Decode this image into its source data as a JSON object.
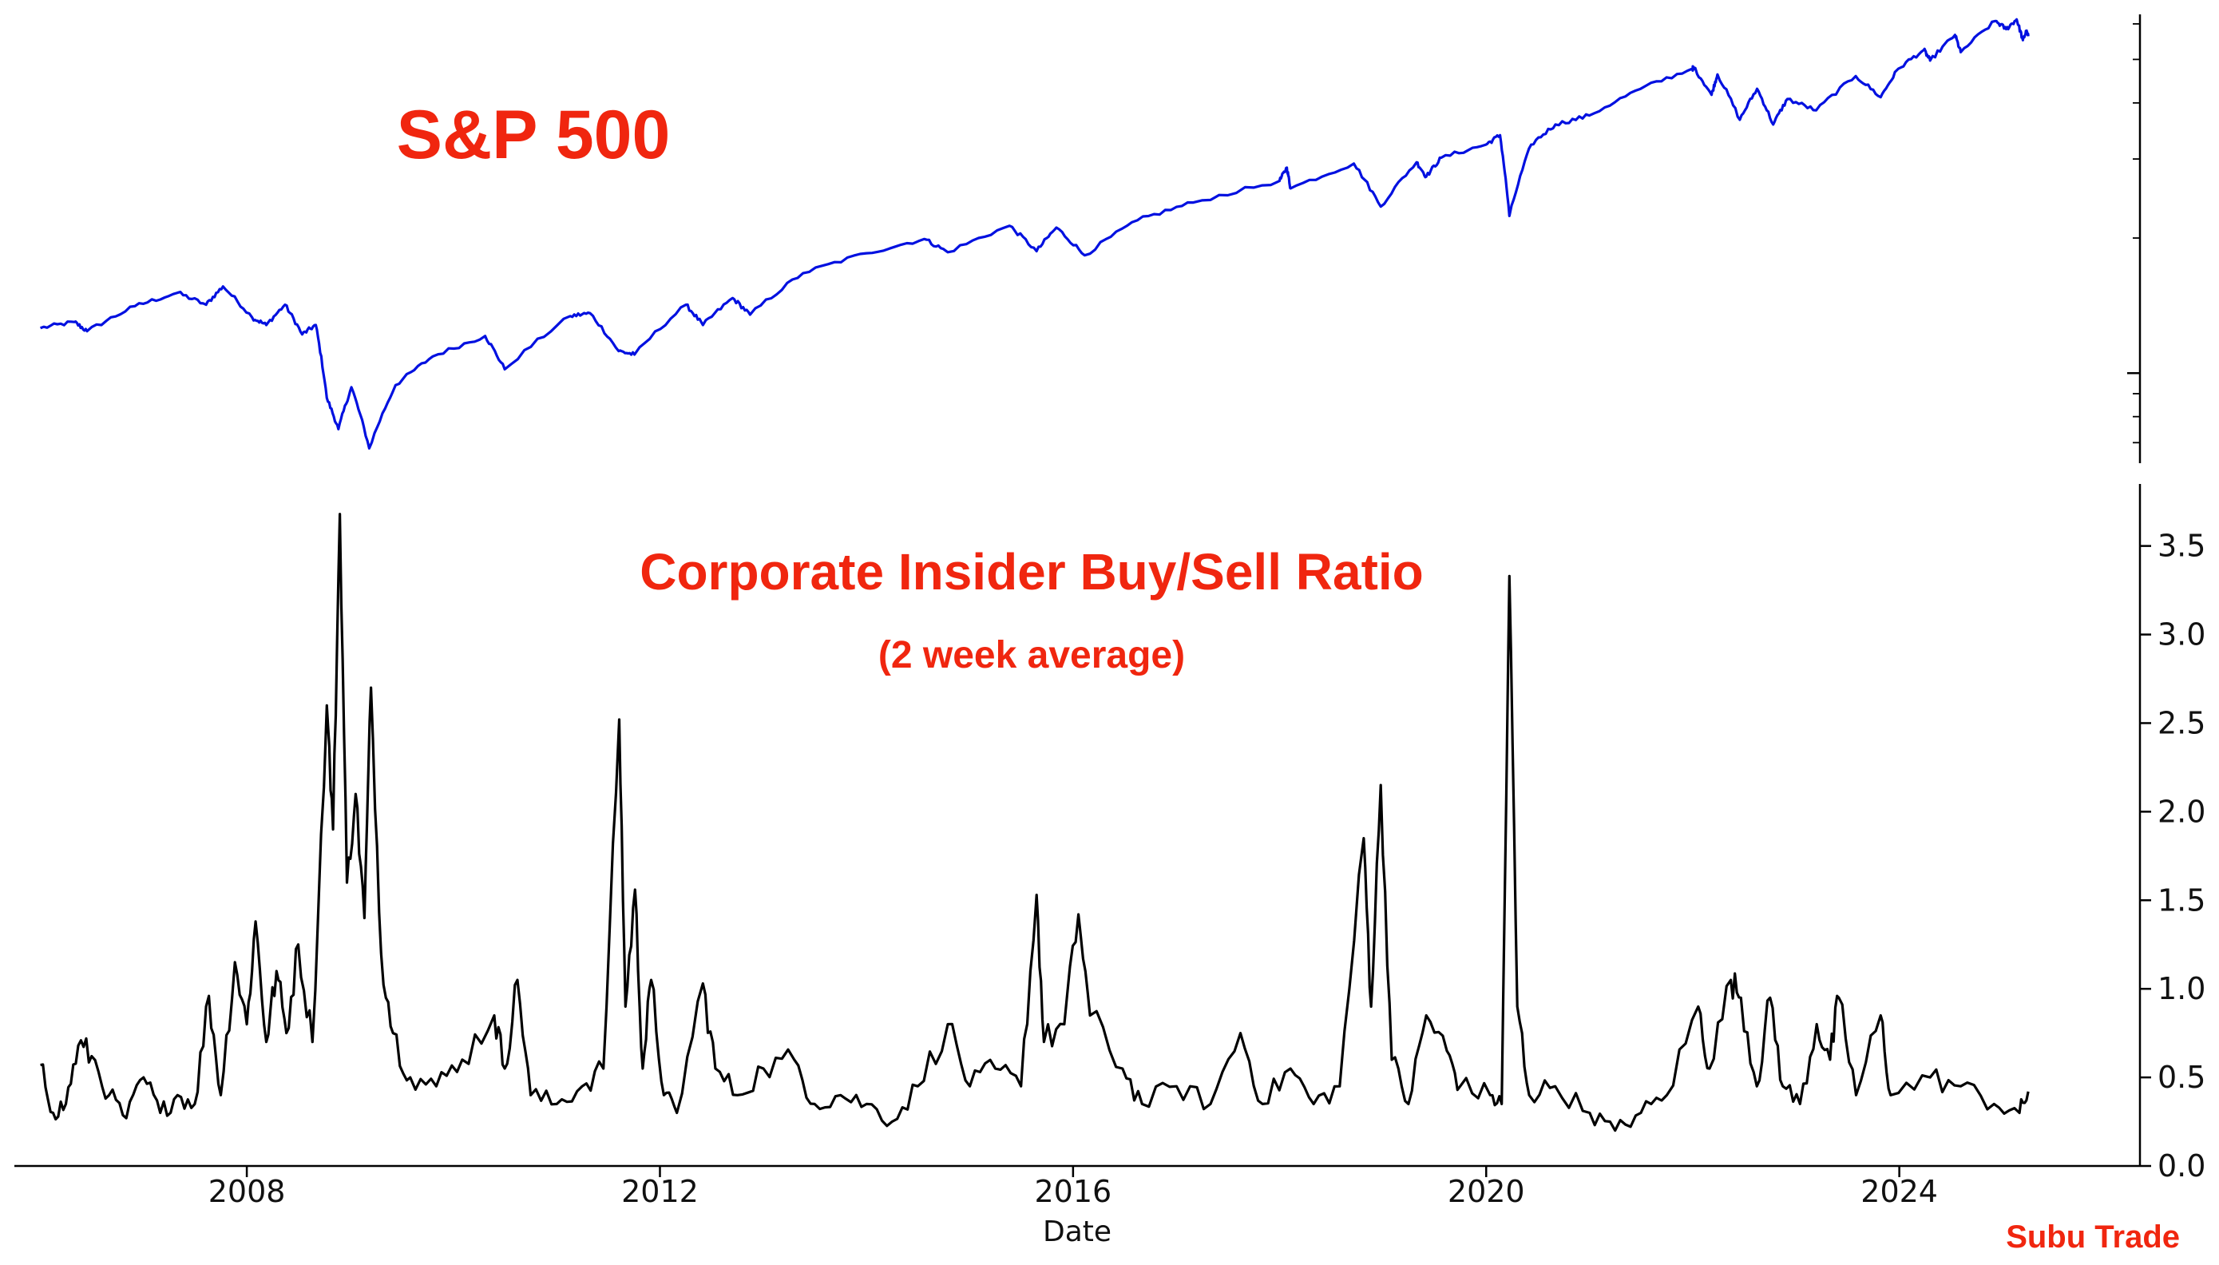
{
  "chart_data": [
    {
      "panel": "top",
      "type": "line",
      "annotation": "S&P 500",
      "yscale": "log",
      "xlabel": "",
      "ylabel": "",
      "ylim": [
        630,
        6300
      ],
      "yticks_shown_labels": false,
      "color": "#0010e0",
      "series": [
        {
          "points": [
            [
              "2006-01-01",
              1260
            ],
            [
              "2006-05-01",
              1300
            ],
            [
              "2006-06-15",
              1240
            ],
            [
              "2006-12-01",
              1410
            ],
            [
              "2007-05-01",
              1510
            ],
            [
              "2007-08-10",
              1420
            ],
            [
              "2007-10-09",
              1560
            ],
            [
              "2008-01-20",
              1330
            ],
            [
              "2008-03-10",
              1280
            ],
            [
              "2008-05-15",
              1420
            ],
            [
              "2008-07-15",
              1220
            ],
            [
              "2008-09-01",
              1280
            ],
            [
              "2008-10-10",
              880
            ],
            [
              "2008-11-20",
              750
            ],
            [
              "2009-01-05",
              930
            ],
            [
              "2009-03-09",
              680
            ],
            [
              "2009-06-10",
              940
            ],
            [
              "2009-10-20",
              1090
            ],
            [
              "2010-04-23",
              1210
            ],
            [
              "2010-07-01",
              1020
            ],
            [
              "2011-02-18",
              1340
            ],
            [
              "2011-04-29",
              1360
            ],
            [
              "2011-08-08",
              1120
            ],
            [
              "2011-10-03",
              1100
            ],
            [
              "2012-04-02",
              1420
            ],
            [
              "2012-06-01",
              1280
            ],
            [
              "2012-09-14",
              1470
            ],
            [
              "2012-11-15",
              1350
            ],
            [
              "2013-05-21",
              1670
            ],
            [
              "2013-12-31",
              1850
            ],
            [
              "2014-07-24",
              1990
            ],
            [
              "2014-10-15",
              1860
            ],
            [
              "2015-05-21",
              2130
            ],
            [
              "2015-08-25",
              1870
            ],
            [
              "2015-11-03",
              2110
            ],
            [
              "2016-02-11",
              1830
            ],
            [
              "2016-08-15",
              2190
            ],
            [
              "2017-03-01",
              2400
            ],
            [
              "2017-12-31",
              2680
            ],
            [
              "2018-01-26",
              2870
            ],
            [
              "2018-02-08",
              2580
            ],
            [
              "2018-09-20",
              2930
            ],
            [
              "2018-12-24",
              2350
            ],
            [
              "2019-04-30",
              2950
            ],
            [
              "2019-06-03",
              2740
            ],
            [
              "2019-07-26",
              3020
            ],
            [
              "2019-12-31",
              3230
            ],
            [
              "2020-02-19",
              3390
            ],
            [
              "2020-03-23",
              2240
            ],
            [
              "2020-06-08",
              3230
            ],
            [
              "2020-09-02",
              3580
            ],
            [
              "2020-12-31",
              3750
            ],
            [
              "2021-06-30",
              4300
            ],
            [
              "2021-12-31",
              4770
            ],
            [
              "2022-01-03",
              4800
            ],
            [
              "2022-03-08",
              4170
            ],
            [
              "2022-03-29",
              4630
            ],
            [
              "2022-06-16",
              3670
            ],
            [
              "2022-08-16",
              4300
            ],
            [
              "2022-10-12",
              3580
            ],
            [
              "2022-12-01",
              4080
            ],
            [
              "2023-03-13",
              3850
            ],
            [
              "2023-07-31",
              4590
            ],
            [
              "2023-10-27",
              4120
            ],
            [
              "2023-12-29",
              4770
            ],
            [
              "2024-03-28",
              5250
            ],
            [
              "2024-04-19",
              4970
            ],
            [
              "2024-07-16",
              5670
            ],
            [
              "2024-08-05",
              5190
            ],
            [
              "2024-12-06",
              6090
            ],
            [
              "2025-01-13",
              5840
            ],
            [
              "2025-02-19",
              6140
            ],
            [
              "2025-03-13",
              5520
            ],
            [
              "2025-03-25",
              5770
            ],
            [
              "2025-04-01",
              5630
            ]
          ]
        }
      ]
    },
    {
      "panel": "bottom",
      "type": "line",
      "annotation": "Corporate Insider Buy/Sell Ratio",
      "annotation_sub": "(2 week average)",
      "xlabel": "Date",
      "ylabel": "",
      "ylim": [
        0.0,
        3.85
      ],
      "yticks": [
        "0.0",
        "0.5",
        "1.0",
        "1.5",
        "2.0",
        "2.5",
        "3.0",
        "3.5"
      ],
      "xticks": [
        "2008",
        "2012",
        "2016",
        "2020",
        "2024"
      ],
      "xlim": [
        "2005-10-01",
        "2026-05-01"
      ],
      "color": "#000000",
      "series": [
        {
          "points": [
            [
              "2006-01-01",
              0.57
            ],
            [
              "2006-02-15",
              0.3
            ],
            [
              "2006-04-01",
              0.35
            ],
            [
              "2006-05-15",
              0.68
            ],
            [
              "2006-07-01",
              0.62
            ],
            [
              "2006-09-01",
              0.4
            ],
            [
              "2006-11-01",
              0.27
            ],
            [
              "2007-01-01",
              0.5
            ],
            [
              "2007-03-01",
              0.3
            ],
            [
              "2007-05-01",
              0.4
            ],
            [
              "2007-07-01",
              0.35
            ],
            [
              "2007-08-20",
              0.96
            ],
            [
              "2007-10-01",
              0.4
            ],
            [
              "2007-11-20",
              1.15
            ],
            [
              "2008-01-01",
              0.8
            ],
            [
              "2008-02-01",
              1.38
            ],
            [
              "2008-03-10",
              0.7
            ],
            [
              "2008-04-15",
              1.1
            ],
            [
              "2008-05-20",
              0.75
            ],
            [
              "2008-07-01",
              1.25
            ],
            [
              "2008-08-20",
              0.7
            ],
            [
              "2008-10-10",
              2.6
            ],
            [
              "2008-11-01",
              1.9
            ],
            [
              "2008-11-25",
              3.68
            ],
            [
              "2008-12-20",
              1.6
            ],
            [
              "2009-01-20",
              2.1
            ],
            [
              "2009-02-20",
              1.4
            ],
            [
              "2009-03-15",
              2.7
            ],
            [
              "2009-04-20",
              1.2
            ],
            [
              "2009-06-01",
              0.75
            ],
            [
              "2009-08-01",
              0.5
            ],
            [
              "2009-11-01",
              0.45
            ],
            [
              "2010-02-01",
              0.6
            ],
            [
              "2010-05-25",
              0.85
            ],
            [
              "2010-07-01",
              0.55
            ],
            [
              "2010-08-15",
              1.05
            ],
            [
              "2010-10-01",
              0.4
            ],
            [
              "2011-01-01",
              0.35
            ],
            [
              "2011-04-01",
              0.45
            ],
            [
              "2011-06-15",
              0.55
            ],
            [
              "2011-08-10",
              2.52
            ],
            [
              "2011-09-01",
              0.9
            ],
            [
              "2011-10-05",
              1.56
            ],
            [
              "2011-11-01",
              0.55
            ],
            [
              "2011-12-01",
              1.05
            ],
            [
              "2012-01-15",
              0.4
            ],
            [
              "2012-03-01",
              0.3
            ],
            [
              "2012-06-01",
              1.03
            ],
            [
              "2012-07-15",
              0.55
            ],
            [
              "2012-10-01",
              0.4
            ],
            [
              "2013-01-01",
              0.55
            ],
            [
              "2013-04-20",
              0.6
            ],
            [
              "2013-07-01",
              0.35
            ],
            [
              "2013-10-01",
              0.4
            ],
            [
              "2014-01-01",
              0.35
            ],
            [
              "2014-04-01",
              0.25
            ],
            [
              "2014-07-01",
              0.45
            ],
            [
              "2014-10-15",
              0.8
            ],
            [
              "2015-01-01",
              0.45
            ],
            [
              "2015-04-01",
              0.55
            ],
            [
              "2015-07-01",
              0.45
            ],
            [
              "2015-08-25",
              1.53
            ],
            [
              "2015-09-20",
              0.7
            ],
            [
              "2015-12-01",
              0.8
            ],
            [
              "2016-01-20",
              1.42
            ],
            [
              "2016-03-01",
              0.85
            ],
            [
              "2016-06-24",
              0.55
            ],
            [
              "2016-09-01",
              0.35
            ],
            [
              "2017-01-01",
              0.45
            ],
            [
              "2017-05-01",
              0.35
            ],
            [
              "2017-08-15",
              0.75
            ],
            [
              "2017-11-01",
              0.35
            ],
            [
              "2018-02-08",
              0.55
            ],
            [
              "2018-05-01",
              0.35
            ],
            [
              "2018-08-01",
              0.45
            ],
            [
              "2018-10-25",
              1.85
            ],
            [
              "2018-11-20",
              0.9
            ],
            [
              "2018-12-24",
              2.15
            ],
            [
              "2019-02-01",
              0.6
            ],
            [
              "2019-04-01",
              0.35
            ],
            [
              "2019-06-03",
              0.85
            ],
            [
              "2019-08-15",
              0.65
            ],
            [
              "2019-10-01",
              0.45
            ],
            [
              "2020-01-15",
              0.4
            ],
            [
              "2020-02-25",
              0.35
            ],
            [
              "2020-03-23",
              3.33
            ],
            [
              "2020-04-20",
              0.9
            ],
            [
              "2020-06-01",
              0.4
            ],
            [
              "2020-09-01",
              0.45
            ],
            [
              "2021-01-01",
              0.3
            ],
            [
              "2021-04-01",
              0.2
            ],
            [
              "2021-07-01",
              0.3
            ],
            [
              "2021-10-01",
              0.4
            ],
            [
              "2022-01-20",
              0.9
            ],
            [
              "2022-03-01",
              0.55
            ],
            [
              "2022-05-15",
              1.05
            ],
            [
              "2022-06-20",
              0.95
            ],
            [
              "2022-08-15",
              0.45
            ],
            [
              "2022-10-01",
              0.95
            ],
            [
              "2022-11-15",
              0.45
            ],
            [
              "2023-01-15",
              0.35
            ],
            [
              "2023-03-15",
              0.8
            ],
            [
              "2023-05-01",
              0.6
            ],
            [
              "2023-06-01",
              0.95
            ],
            [
              "2023-08-01",
              0.4
            ],
            [
              "2023-10-27",
              0.85
            ],
            [
              "2023-12-01",
              0.4
            ],
            [
              "2024-04-19",
              0.5
            ],
            [
              "2024-08-05",
              0.45
            ],
            [
              "2024-12-01",
              0.35
            ],
            [
              "2025-03-01",
              0.3
            ],
            [
              "2025-04-01",
              0.42
            ]
          ]
        }
      ]
    }
  ],
  "watermark": "Subu Trade"
}
